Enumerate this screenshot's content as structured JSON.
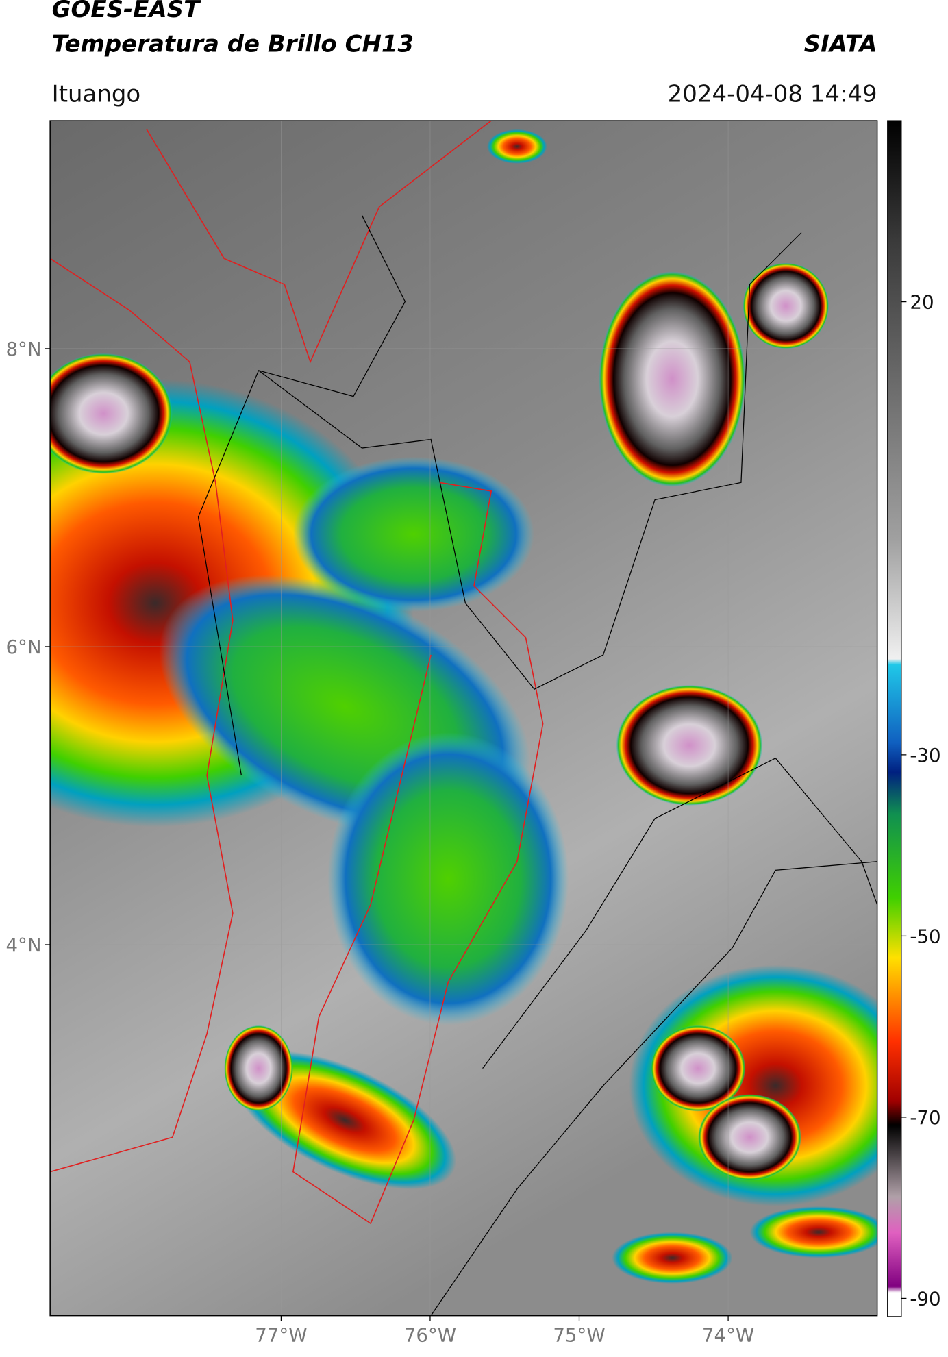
{
  "header": {
    "title": "GOES-EAST",
    "subtitle": "Temperatura de Brillo CH13",
    "source": "SIATA",
    "location": "Ituango",
    "datetime": "2024-04-08 14:49"
  },
  "map": {
    "xlim": [
      -78.55,
      -73.0
    ],
    "ylim": [
      1.51,
      9.53
    ],
    "grid": true,
    "xticks": [
      {
        "value": -77,
        "label": "77°W"
      },
      {
        "value": -76,
        "label": "76°W"
      },
      {
        "value": -75,
        "label": "75°W"
      },
      {
        "value": -74,
        "label": "74°W"
      }
    ],
    "yticks": [
      {
        "value": 4,
        "label": "4°N"
      },
      {
        "value": 6,
        "label": "6°N"
      },
      {
        "value": 8,
        "label": "8°N"
      }
    ]
  },
  "colorbar": {
    "clim": [
      -92,
      40
    ],
    "ticks": [
      20,
      -30,
      -50,
      -70,
      -90
    ]
  }
}
